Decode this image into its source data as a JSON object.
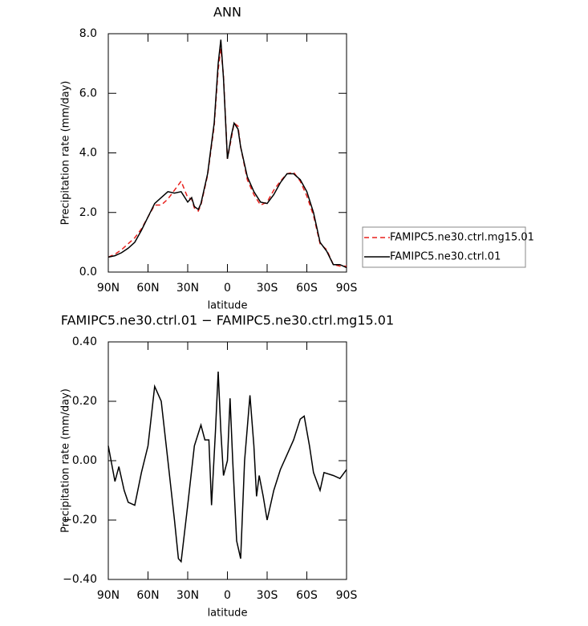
{
  "chart_data": [
    {
      "type": "line",
      "title": "ANN",
      "x_label": "latitude",
      "y_label": "Precipitation rate (mm/day)",
      "x": [
        90,
        85,
        80,
        75,
        70,
        65,
        60,
        55,
        50,
        45,
        40,
        35,
        30,
        27,
        25,
        22,
        20,
        15,
        10,
        7,
        5,
        3,
        0,
        -3,
        -5,
        -8,
        -10,
        -15,
        -20,
        -25,
        -30,
        -35,
        -40,
        -45,
        -50,
        -55,
        -60,
        -65,
        -70,
        -75,
        -80,
        -85,
        -90
      ],
      "series": [
        {
          "name": "FAMIPC5.ne30.ctrl.mg15.01",
          "color": "#e8201c",
          "linestyle": "dashed",
          "values": [
            0.5,
            0.6,
            0.75,
            0.95,
            1.15,
            1.45,
            1.85,
            2.25,
            2.25,
            2.45,
            2.75,
            3.05,
            2.5,
            2.45,
            2.15,
            2.05,
            2.25,
            3.25,
            4.9,
            6.8,
            7.5,
            6.6,
            3.8,
            4.5,
            5.0,
            4.9,
            4.2,
            3.1,
            2.6,
            2.25,
            2.35,
            2.75,
            3.05,
            3.3,
            3.35,
            3.05,
            2.55,
            1.9,
            0.95,
            0.75,
            0.25,
            0.2,
            0.2
          ]
        },
        {
          "name": "FAMIPC5.ne30.ctrl.01",
          "color": "#000000",
          "linestyle": "solid",
          "values": [
            0.5,
            0.55,
            0.65,
            0.8,
            1.0,
            1.4,
            1.85,
            2.3,
            2.5,
            2.7,
            2.65,
            2.7,
            2.35,
            2.5,
            2.2,
            2.1,
            2.3,
            3.3,
            5.0,
            7.0,
            7.8,
            6.5,
            3.8,
            4.6,
            5.0,
            4.8,
            4.2,
            3.2,
            2.7,
            2.35,
            2.3,
            2.6,
            3.0,
            3.3,
            3.3,
            3.1,
            2.7,
            2.0,
            1.0,
            0.7,
            0.25,
            0.25,
            0.15
          ]
        }
      ],
      "xlim": [
        90,
        -90
      ],
      "xticks": [
        {
          "value": 90,
          "label": "90N"
        },
        {
          "value": 60,
          "label": "60N"
        },
        {
          "value": 30,
          "label": "30N"
        },
        0,
        {
          "value": -30,
          "label": "30S"
        },
        {
          "value": -60,
          "label": "60S"
        },
        {
          "value": -90,
          "label": "90S"
        }
      ],
      "ylim": [
        0,
        8
      ],
      "yticks": [
        {
          "value": 0,
          "label": "0.0"
        },
        {
          "value": 2,
          "label": "2.0"
        },
        {
          "value": 4,
          "label": "4.0"
        },
        {
          "value": 6,
          "label": "6.0"
        },
        {
          "value": 8,
          "label": "8.0"
        }
      ],
      "legend": "right"
    },
    {
      "type": "line",
      "title": "FAMIPC5.ne30.ctrl.01 − FAMIPC5.ne30.ctrl.mg15.01",
      "x_label": "latitude",
      "y_label": "Precipitation rate (mm/day)",
      "x": [
        90,
        85,
        82,
        78,
        75,
        70,
        65,
        60,
        55,
        50,
        45,
        40,
        37,
        35,
        30,
        25,
        20,
        17,
        14,
        12,
        9,
        7,
        5,
        3,
        0,
        -2,
        -4,
        -7,
        -10,
        -13,
        -17,
        -20,
        -22,
        -24,
        -27,
        -30,
        -35,
        -40,
        -45,
        -50,
        -55,
        -58,
        -62,
        -65,
        -70,
        -73,
        -80,
        -85,
        -90
      ],
      "series": [
        {
          "name": null,
          "color": "#000000",
          "linestyle": "solid",
          "values": [
            0.05,
            -0.07,
            -0.02,
            -0.1,
            -0.14,
            -0.15,
            -0.04,
            0.05,
            0.25,
            0.2,
            0.0,
            -0.2,
            -0.33,
            -0.34,
            -0.15,
            0.05,
            0.12,
            0.07,
            0.07,
            -0.15,
            0.1,
            0.3,
            0.1,
            -0.05,
            0.0,
            0.21,
            0.0,
            -0.27,
            -0.33,
            0.0,
            0.22,
            0.05,
            -0.12,
            -0.05,
            -0.12,
            -0.2,
            -0.1,
            -0.03,
            0.02,
            0.07,
            0.14,
            0.15,
            0.05,
            -0.04,
            -0.1,
            -0.04,
            -0.05,
            -0.06,
            -0.03
          ]
        }
      ],
      "xlim": [
        90,
        -90
      ],
      "xticks": [
        {
          "value": 90,
          "label": "90N"
        },
        {
          "value": 60,
          "label": "60N"
        },
        {
          "value": 30,
          "label": "30N"
        },
        0,
        {
          "value": -30,
          "label": "30S"
        },
        {
          "value": -60,
          "label": "60S"
        },
        {
          "value": -90,
          "label": "90S"
        }
      ],
      "ylim": [
        -0.4,
        0.4
      ],
      "yticks": [
        {
          "value": -0.4,
          "label": "−0.40"
        },
        {
          "value": -0.2,
          "label": "−0.20"
        },
        {
          "value": 0,
          "label": "0.00"
        },
        {
          "value": 0.2,
          "label": "0.20"
        },
        {
          "value": 0.4,
          "label": "0.40"
        }
      ]
    }
  ]
}
